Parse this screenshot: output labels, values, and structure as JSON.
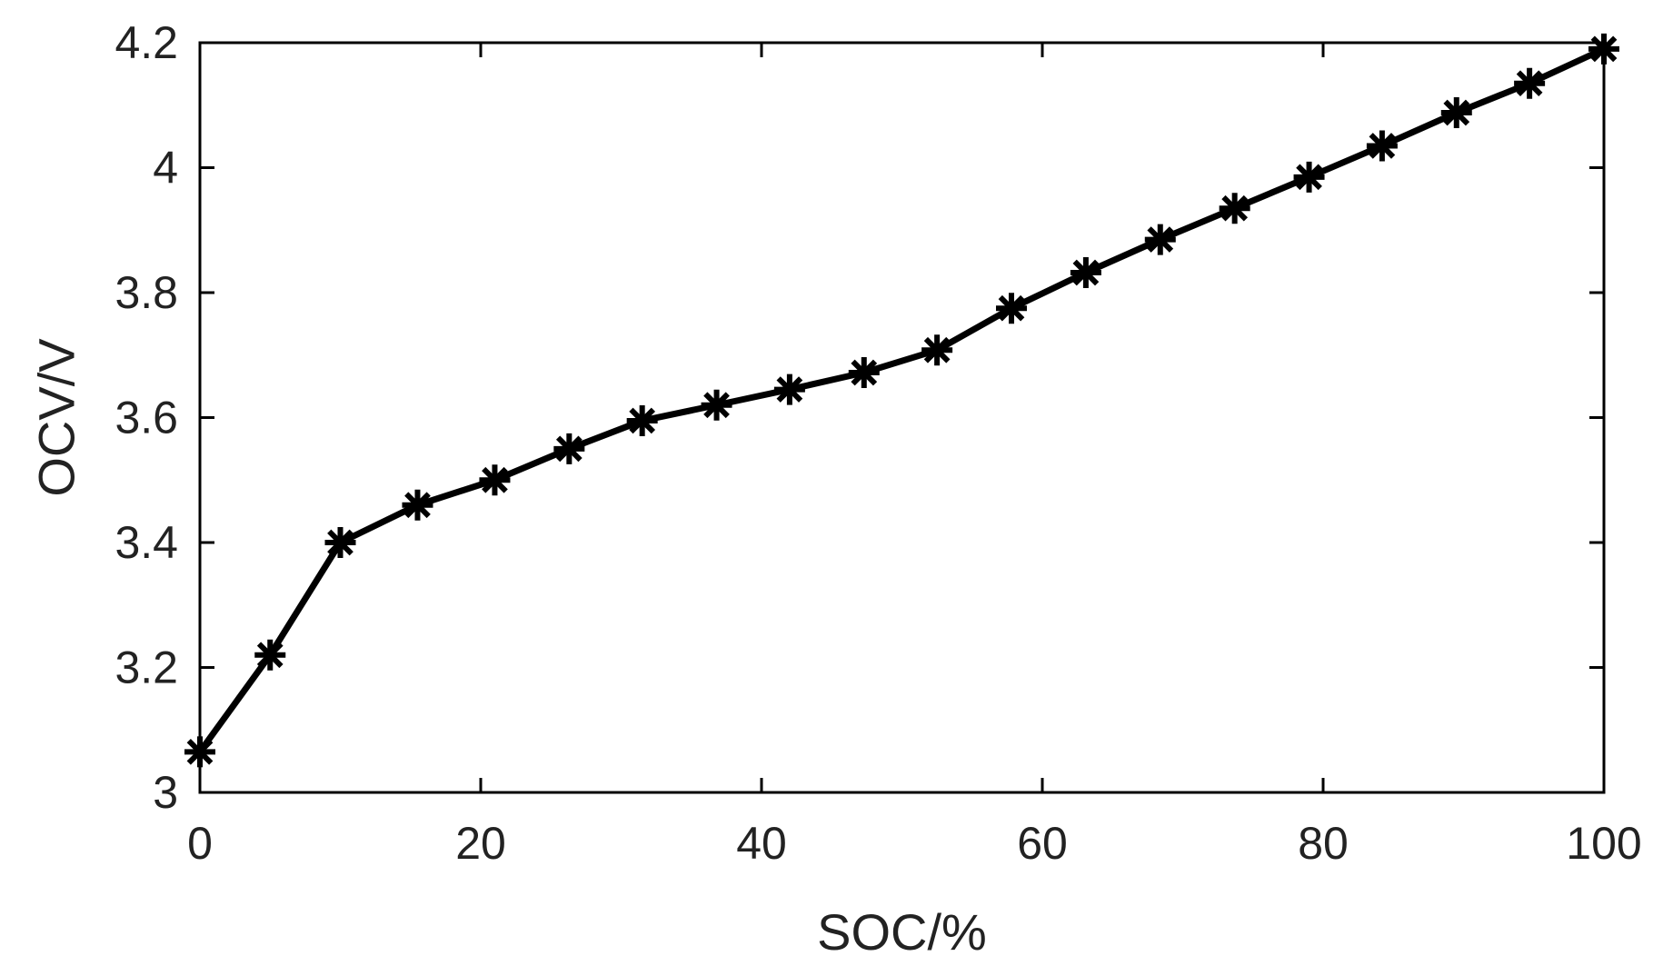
{
  "chart_data": {
    "type": "line",
    "title": "",
    "xlabel": "SOC/%",
    "ylabel": "OCV/V",
    "xlim": [
      0,
      100
    ],
    "ylim": [
      3,
      4.2
    ],
    "xticks": [
      0,
      20,
      40,
      60,
      80,
      100
    ],
    "xtick_labels": [
      "0",
      "20",
      "40",
      "60",
      "80",
      "100"
    ],
    "yticks": [
      3,
      3.2,
      3.4,
      3.6,
      3.8,
      4,
      4.2
    ],
    "ytick_labels": [
      "3",
      "3.2",
      "3.4",
      "3.6",
      "3.8",
      "4",
      "4.2"
    ],
    "grid": false,
    "legend": "none",
    "series": [
      {
        "marker": "asterisk",
        "color": "#000000",
        "x": [
          0,
          5,
          10,
          15.5,
          21,
          26.3,
          31.5,
          36.8,
          42,
          47.3,
          52.5,
          57.8,
          63.1,
          68.4,
          73.7,
          79,
          84.2,
          89.5,
          94.7,
          100
        ],
        "y": [
          3.065,
          3.22,
          3.4,
          3.46,
          3.5,
          3.55,
          3.595,
          3.62,
          3.645,
          3.672,
          3.708,
          3.775,
          3.832,
          3.885,
          3.935,
          3.985,
          4.035,
          4.088,
          4.135,
          4.19
        ]
      }
    ]
  }
}
